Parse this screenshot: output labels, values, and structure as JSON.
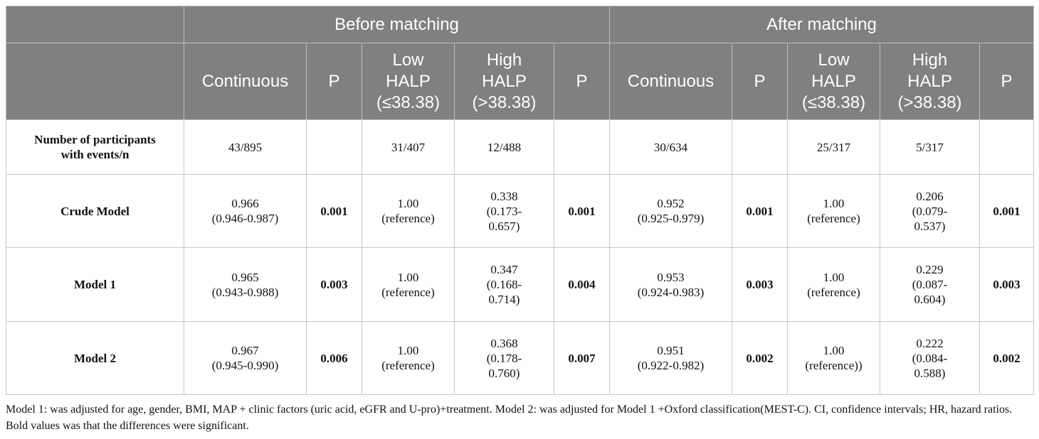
{
  "header": {
    "group_before": "Before matching",
    "group_after": "After matching",
    "columns": [
      "Continuous",
      "P",
      "Low\nHALP\n(≤38.38)",
      "High\nHALP\n(>38.38)",
      "P",
      "Continuous",
      "P",
      "Low\nHALP\n(≤38.38)",
      "High\nHALP\n(>38.38)",
      "P"
    ]
  },
  "rows": [
    {
      "label": "Number of participants\nwith events/n",
      "cells": [
        "43/895",
        "",
        "31/407",
        "12/488",
        "",
        "30/634",
        "",
        "25/317",
        "5/317",
        ""
      ]
    },
    {
      "label": "Crude Model",
      "cells": [
        "0.966\n(0.946-0.987)",
        "0.001",
        "1.00\n(reference)",
        "0.338\n(0.173-\n0.657)",
        "0.001",
        "0.952\n(0.925-0.979)",
        "0.001",
        "1.00\n(reference)",
        "0.206\n(0.079-\n0.537)",
        "0.001"
      ]
    },
    {
      "label": "Model 1",
      "cells": [
        "0.965\n(0.943-0.988)",
        "0.003",
        "1.00\n(reference)",
        "0.347\n(0.168-\n0.714)",
        "0.004",
        "0.953\n(0.924-0.983)",
        "0.003",
        "1.00\n(reference)",
        "0.229\n(0.087-\n0.604)",
        "0.003"
      ]
    },
    {
      "label": "Model 2",
      "cells": [
        "0.967\n(0.945-0.990)",
        "0.006",
        "1.00\n(reference)",
        "0.368\n(0.178-\n0.760)",
        "0.007",
        "0.951\n(0.922-0.982)",
        "0.002",
        "1.00\n(reference))",
        "0.222\n(0.084-\n0.588)",
        "0.002"
      ]
    }
  ],
  "footnote": "Model 1: was adjusted for age, gender, BMI, MAP + clinic factors (uric acid, eGFR and U-pro)+treatment. Model 2: was adjusted for Model 1 +Oxford classification(MEST-C). CI, confidence intervals; HR, hazard ratios. Bold values was that the differences were significant."
}
